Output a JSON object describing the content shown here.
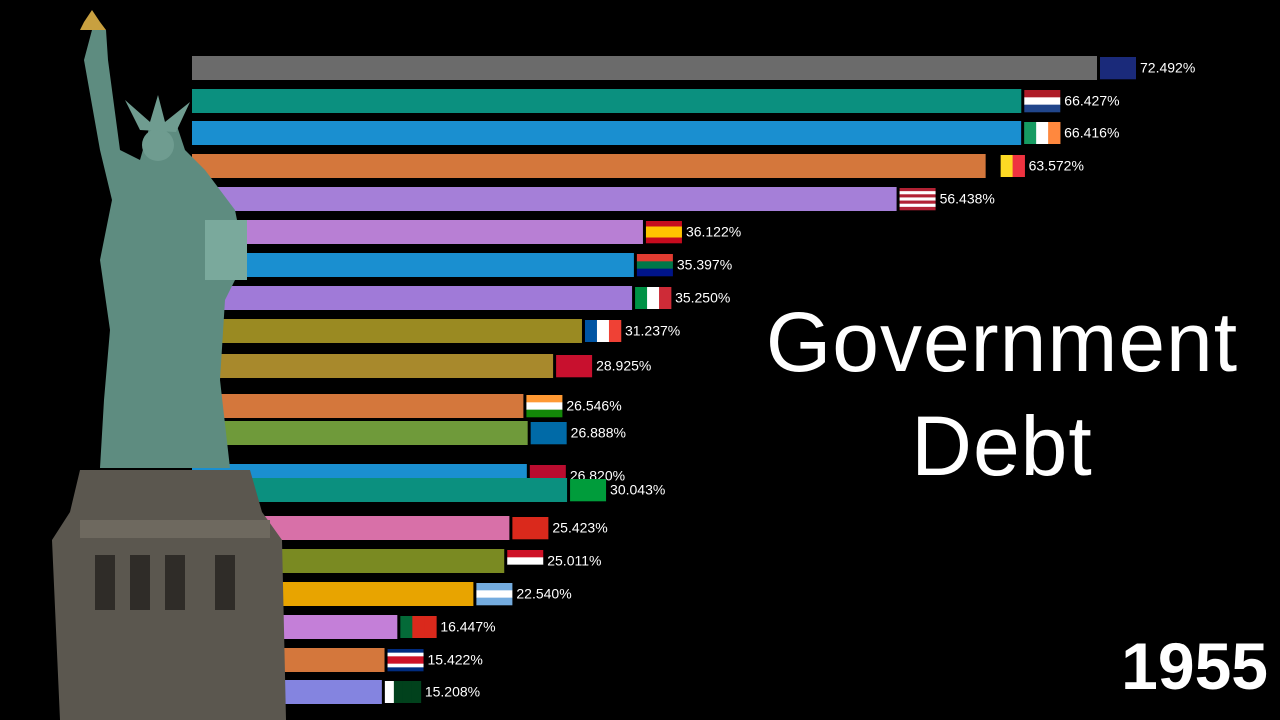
{
  "chart_data": {
    "type": "bar",
    "orientation": "horizontal",
    "title": "Government Debt",
    "year": "1955",
    "values": [
      72.492,
      66.427,
      66.416,
      63.572,
      56.438,
      36.122,
      35.397,
      35.25,
      31.237,
      28.925,
      26.546,
      26.888,
      26.82,
      30.043,
      25.423,
      25.011,
      22.54,
      16.447,
      15.422,
      15.208
    ],
    "value_labels": [
      "72.492%",
      "66.427%",
      "66.416%",
      "63.572%",
      "56.438%",
      "36.122%",
      "35.397%",
      "35.250%",
      "31.237%",
      "28.925%",
      "26.546%",
      "26.888%",
      "26.820%",
      "30.043%",
      "25.423%",
      "25.011%",
      "22.540%",
      "16.447%",
      "15.422%",
      "15.208%"
    ],
    "colors": [
      "#6b6b6b",
      "#0b907f",
      "#1a8fd0",
      "#d4773c",
      "#a57fd8",
      "#b87fd4",
      "#1a8fd0",
      "#a07ad8",
      "#9a8a22",
      "#a8892c",
      "#d4773c",
      "#6f9a3a",
      "#1a8fd0",
      "#0b907f",
      "#d870a8",
      "#7a8a22",
      "#e8a400",
      "#c47fd8",
      "#d4773c",
      "#8484e0"
    ]
  }
}
